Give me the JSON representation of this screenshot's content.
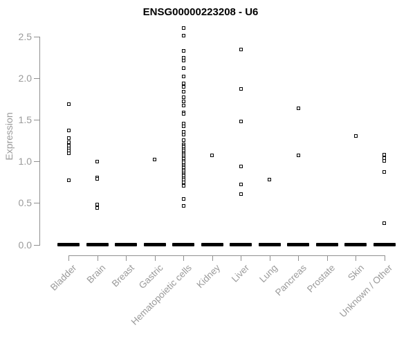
{
  "chart_data": {
    "type": "scatter",
    "subtype": "strip-plot",
    "title": "ENSG00000223208 - U6",
    "ylabel": "Expression",
    "xlabel": "",
    "ylim": [
      0,
      2.5
    ],
    "yticks": [
      0,
      0.5,
      1,
      1.5,
      2,
      2.5
    ],
    "ytick_labels": [
      "0.0",
      "0.5",
      "1.0",
      "1.5",
      "2.0",
      "2.5"
    ],
    "grid": false,
    "legend_position": "none",
    "marker": "open-square",
    "point_color": "#000000",
    "axis_color": "#8f8f8f",
    "tick_label_color": "#9a9a9a",
    "title_color": "#000000",
    "zero_bar_value": 0,
    "categories": [
      "Bladder",
      "Brain",
      "Breast",
      "Gastric",
      "Hematopoietic cells",
      "Kidney",
      "Liver",
      "Lung",
      "Pancreas",
      "Prostate",
      "Skin",
      "Unknown / Other"
    ],
    "groups": [
      {
        "label": "Bladder",
        "zero_bar": true,
        "values": [
          1.69,
          1.37,
          1.28,
          1.23,
          1.19,
          1.16,
          1.13,
          1.1,
          0.77
        ]
      },
      {
        "label": "Brain",
        "zero_bar": true,
        "values": [
          1.0,
          0.81,
          0.79,
          0.48,
          0.44
        ]
      },
      {
        "label": "Breast",
        "zero_bar": true,
        "values": []
      },
      {
        "label": "Gastric",
        "zero_bar": true,
        "values": [
          1.02
        ]
      },
      {
        "label": "Hematopoietic cells",
        "zero_bar": true,
        "values": [
          2.6,
          2.51,
          2.33,
          2.25,
          2.21,
          2.12,
          2.02,
          1.94,
          1.9,
          1.84,
          1.77,
          1.72,
          1.67,
          1.59,
          1.57,
          1.46,
          1.42,
          1.36,
          1.32,
          1.26,
          1.21,
          1.19,
          1.17,
          1.15,
          1.13,
          1.11,
          1.09,
          1.07,
          1.05,
          1.03,
          1.01,
          0.99,
          0.96,
          0.94,
          0.92,
          0.9,
          0.88,
          0.86,
          0.84,
          0.82,
          0.8,
          0.78,
          0.75,
          0.71,
          0.55,
          0.47
        ]
      },
      {
        "label": "Kidney",
        "zero_bar": true,
        "values": [
          1.07
        ]
      },
      {
        "label": "Liver",
        "zero_bar": true,
        "values": [
          2.35,
          1.87,
          1.48,
          0.94,
          0.72,
          0.61
        ]
      },
      {
        "label": "Lung",
        "zero_bar": true,
        "values": [
          0.78
        ]
      },
      {
        "label": "Pancreas",
        "zero_bar": true,
        "values": [
          1.64,
          1.07
        ]
      },
      {
        "label": "Prostate",
        "zero_bar": true,
        "values": []
      },
      {
        "label": "Skin",
        "zero_bar": true,
        "values": [
          1.31
        ]
      },
      {
        "label": "Unknown / Other",
        "zero_bar": true,
        "values": [
          1.08,
          1.04,
          1.01,
          0.87,
          0.26
        ]
      }
    ]
  }
}
